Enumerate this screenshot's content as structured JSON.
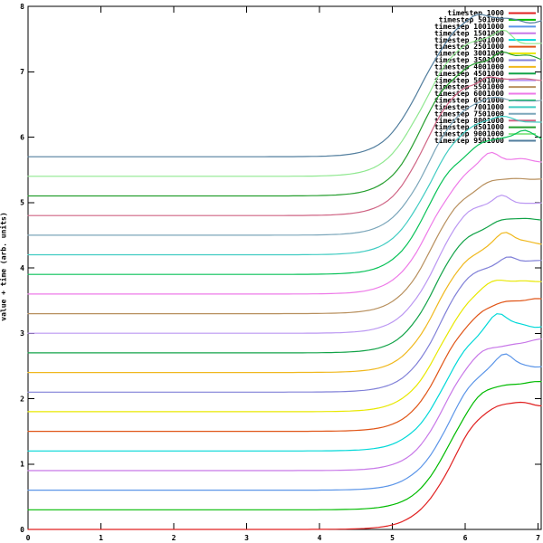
{
  "chart_data": {
    "type": "line",
    "title": "",
    "xlabel": "",
    "ylabel": "value + time (arb. units)",
    "xlim": [
      0,
      7.043
    ],
    "ylim": [
      0,
      8
    ],
    "xticks": [
      "0",
      "1",
      "2",
      "3",
      "4",
      "5",
      "6",
      "7"
    ],
    "yticks": [
      "0",
      "1",
      "2",
      "3",
      "4",
      "5",
      "6",
      "7",
      "8"
    ],
    "grid": false,
    "legend_position": "top-right",
    "series_offset_step": 0.3,
    "curve_shape": "flat baseline, sigmoid rise of ~2 units starting near x=4.6-5.0, noisy plateau to right edge",
    "series": [
      {
        "label": "timestep 1000",
        "color": "#e02020",
        "base": 0.0,
        "amp": 2.0,
        "mid": 5.8,
        "wig": 0.06,
        "sag": 0.05,
        "bump": 0.0,
        "bump_x": 6.5,
        "seed": 11
      },
      {
        "label": "timestep 501000",
        "color": "#00bb00",
        "base": 0.3,
        "amp": 2.008,
        "mid": 5.78,
        "wig": 0.05,
        "sag": 0.04,
        "bump": 0.0,
        "bump_x": 6.5,
        "seed": 22
      },
      {
        "label": "timestep 1001000",
        "color": "#5b95e8",
        "base": 0.6,
        "amp": 2.016,
        "mid": 5.76,
        "wig": 0.07,
        "sag": 0.08,
        "bump": 0.14,
        "bump_x": 6.55,
        "seed": 33
      },
      {
        "label": "timestep 1501000",
        "color": "#c878e8",
        "base": 0.9,
        "amp": 2.024,
        "mid": 5.73,
        "wig": 0.05,
        "sag": 0.05,
        "bump": 0.0,
        "bump_x": 6.5,
        "seed": 44
      },
      {
        "label": "timestep 2001000",
        "color": "#00d8d8",
        "base": 1.2,
        "amp": 2.032,
        "mid": 5.71,
        "wig": 0.09,
        "sag": 0.1,
        "bump": 0.1,
        "bump_x": 6.45,
        "seed": 55
      },
      {
        "label": "timestep 2501000",
        "color": "#e05517",
        "base": 1.5,
        "amp": 2.04,
        "mid": 5.69,
        "wig": 0.05,
        "sag": 0.05,
        "bump": 0.0,
        "bump_x": 6.5,
        "seed": 66
      },
      {
        "label": "timestep 3001000",
        "color": "#e8e800",
        "base": 1.8,
        "amp": 2.048,
        "mid": 5.67,
        "wig": 0.06,
        "sag": 0.04,
        "bump": 0.0,
        "bump_x": 6.5,
        "seed": 77
      },
      {
        "label": "timestep 3501000",
        "color": "#8080d8",
        "base": 2.1,
        "amp": 2.056,
        "mid": 5.65,
        "wig": 0.05,
        "sag": 0.05,
        "bump": 0.08,
        "bump_x": 6.6,
        "seed": 88
      },
      {
        "label": "timestep 4001000",
        "color": "#f0b81c",
        "base": 2.4,
        "amp": 2.064,
        "mid": 5.62,
        "wig": 0.07,
        "sag": 0.1,
        "bump": 0.1,
        "bump_x": 6.55,
        "seed": 99
      },
      {
        "label": "timestep 4501000",
        "color": "#12a348",
        "base": 2.7,
        "amp": 2.072,
        "mid": 5.6,
        "wig": 0.06,
        "sag": 0.05,
        "bump": 0.0,
        "bump_x": 6.5,
        "seed": 101
      },
      {
        "label": "timestep 5001000",
        "color": "#bb97f2",
        "base": 3.0,
        "amp": 2.08,
        "mid": 5.58,
        "wig": 0.06,
        "sag": 0.08,
        "bump": 0.09,
        "bump_x": 6.5,
        "seed": 113
      },
      {
        "label": "timestep 5501000",
        "color": "#b8905e",
        "base": 3.3,
        "amp": 2.088,
        "mid": 5.56,
        "wig": 0.05,
        "sag": 0.05,
        "bump": 0.0,
        "bump_x": 6.5,
        "seed": 127
      },
      {
        "label": "timestep 6001000",
        "color": "#ee7ae8",
        "base": 3.6,
        "amp": 2.096,
        "mid": 5.53,
        "wig": 0.06,
        "sag": 0.05,
        "bump": 0.1,
        "bump_x": 6.35,
        "seed": 139
      },
      {
        "label": "timestep 6501000",
        "color": "#08c258",
        "base": 3.9,
        "amp": 2.104,
        "mid": 5.51,
        "wig": 0.07,
        "sag": 0.05,
        "bump": 0.12,
        "bump_x": 6.8,
        "seed": 151
      },
      {
        "label": "timestep 7001000",
        "color": "#40ccc2",
        "base": 4.2,
        "amp": 2.112,
        "mid": 5.49,
        "wig": 0.06,
        "sag": 0.06,
        "bump": 0.0,
        "bump_x": 6.5,
        "seed": 163
      },
      {
        "label": "timestep 7501000",
        "color": "#7ba6ba",
        "base": 4.5,
        "amp": 2.12,
        "mid": 5.47,
        "wig": 0.05,
        "sag": 0.05,
        "bump": 0.0,
        "bump_x": 6.5,
        "seed": 179
      },
      {
        "label": "timestep 8001000",
        "color": "#cf6484",
        "base": 4.8,
        "amp": 2.128,
        "mid": 5.44,
        "wig": 0.06,
        "sag": 0.09,
        "bump": 0.1,
        "bump_x": 6.3,
        "seed": 191
      },
      {
        "label": "timestep 8501000",
        "color": "#259e2e",
        "base": 5.1,
        "amp": 2.136,
        "mid": 5.42,
        "wig": 0.06,
        "sag": 0.05,
        "bump": 0.1,
        "bump_x": 6.5,
        "seed": 211
      },
      {
        "label": "timestep 9001000",
        "color": "#90e890",
        "base": 5.4,
        "amp": 2.144,
        "mid": 5.4,
        "wig": 0.07,
        "sag": 0.1,
        "bump": 0.12,
        "bump_x": 6.55,
        "seed": 223
      },
      {
        "label": "timestep 9501000",
        "color": "#527e9e",
        "base": 5.7,
        "amp": 2.152,
        "mid": 5.38,
        "wig": 0.06,
        "sag": 0.07,
        "bump": 0.09,
        "bump_x": 6.15,
        "seed": 227
      }
    ],
    "axis_color": "#000000",
    "background_color": "#ffffff"
  }
}
